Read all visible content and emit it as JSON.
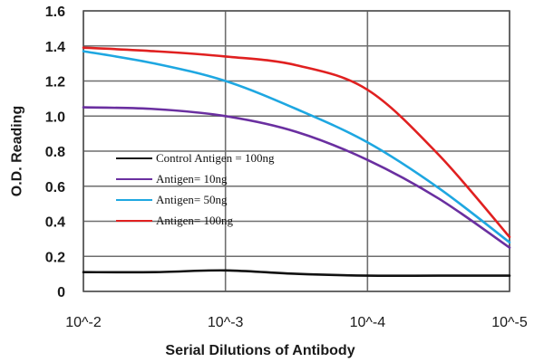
{
  "chart_data": {
    "type": "line",
    "title": "",
    "xlabel": "Serial Dilutions of Antibody",
    "ylabel": "O.D. Reading",
    "x_tick_labels": [
      "10^-2",
      "10^-3",
      "10^-4",
      "10^-5"
    ],
    "x_scale": "log10 dilution",
    "y_ticks": [
      "0",
      "0.2",
      "0.4",
      "0.6",
      "0.8",
      "1.0",
      "1.2",
      "1.4",
      "1.6"
    ],
    "ylim": [
      0,
      1.6
    ],
    "grid": true,
    "legend_position": "center-left",
    "series": [
      {
        "name": "Control Antigen = 100ng",
        "color": "#111111",
        "x": [
          "10^-2",
          "10^-2.5",
          "10^-3",
          "10^-3.5",
          "10^-4",
          "10^-4.5",
          "10^-5"
        ],
        "y": [
          0.11,
          0.11,
          0.12,
          0.1,
          0.09,
          0.09,
          0.09
        ]
      },
      {
        "name": "Antigen= 10ng",
        "color": "#6a2fa0",
        "x": [
          "10^-2",
          "10^-2.5",
          "10^-3",
          "10^-3.5",
          "10^-4",
          "10^-4.5",
          "10^-5"
        ],
        "y": [
          1.05,
          1.04,
          1.0,
          0.91,
          0.75,
          0.53,
          0.25
        ]
      },
      {
        "name": "Antigen= 50ng",
        "color": "#1ea7e1",
        "x": [
          "10^-2",
          "10^-2.5",
          "10^-3",
          "10^-3.5",
          "10^-4",
          "10^-4.5",
          "10^-5"
        ],
        "y": [
          1.37,
          1.3,
          1.2,
          1.04,
          0.85,
          0.59,
          0.28
        ]
      },
      {
        "name": "Antigen= 100ng",
        "color": "#e02020",
        "x": [
          "10^-2",
          "10^-2.5",
          "10^-3",
          "10^-3.5",
          "10^-4",
          "10^-4.5",
          "10^-5"
        ],
        "y": [
          1.39,
          1.37,
          1.34,
          1.29,
          1.15,
          0.78,
          0.31
        ]
      }
    ]
  }
}
